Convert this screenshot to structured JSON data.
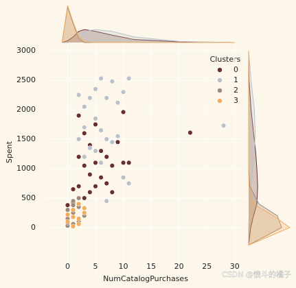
{
  "chart_data": {
    "type": "scatter",
    "x_label": "NumCatalogPurchases",
    "y_label": "Spent",
    "legend_title": "Clusters",
    "legend_position": "upper right",
    "grid": true,
    "watermark": "CSDN @愤斗的橘子",
    "xlim": [
      -4,
      32
    ],
    "ylim": [
      -770,
      3140
    ],
    "xticks": [
      0,
      5,
      10,
      15,
      20,
      25,
      30
    ],
    "yticks": [
      0,
      500,
      1000,
      1500,
      2000,
      2500,
      3000
    ],
    "series": [
      {
        "name": "0",
        "color": "#682f2f",
        "x": [
          0,
          1,
          1,
          2,
          2,
          2,
          3,
          3,
          3,
          4,
          4,
          4,
          5,
          5,
          5,
          6,
          6,
          7,
          7,
          8,
          8,
          9,
          10,
          10,
          11,
          22
        ],
        "values": [
          380,
          650,
          420,
          1900,
          1200,
          700,
          1600,
          1050,
          500,
          1400,
          900,
          600,
          1750,
          1100,
          700,
          1300,
          850,
          1200,
          750,
          1050,
          600,
          1450,
          1960,
          1100,
          1100,
          1610
        ]
      },
      {
        "name": "1",
        "color": "#b9c0c9",
        "x": [
          2,
          2,
          3,
          3,
          3,
          4,
          4,
          5,
          5,
          5,
          6,
          6,
          6,
          7,
          7,
          7,
          8,
          8,
          9,
          9,
          10,
          10,
          11,
          11,
          28
        ],
        "values": [
          2250,
          1500,
          2050,
          1700,
          1200,
          2200,
          1350,
          2350,
          1850,
          1300,
          2530,
          1650,
          1100,
          2200,
          1500,
          450,
          2480,
          1450,
          2120,
          1550,
          2300,
          850,
          2530,
          750,
          1730
        ]
      },
      {
        "name": "2",
        "color": "#9f8a78",
        "x": [
          0,
          0,
          0,
          1,
          1,
          1,
          2,
          2,
          3,
          2,
          1,
          0
        ],
        "values": [
          30,
          150,
          300,
          60,
          250,
          450,
          100,
          350,
          200,
          500,
          380,
          80
        ]
      },
      {
        "name": "3",
        "color": "#f3ab60",
        "x": [
          0,
          0,
          1,
          1,
          2,
          2,
          3,
          3,
          1,
          2
        ],
        "values": [
          100,
          220,
          20,
          300,
          150,
          400,
          250,
          330,
          180,
          60
        ]
      }
    ],
    "top_kde": {
      "x": [
        -1,
        0,
        1,
        2,
        3,
        5,
        8,
        12,
        20,
        30
      ],
      "series": [
        {
          "values": [
            0,
            0.05,
            0.15,
            0.3,
            0.35,
            0.3,
            0.2,
            0.08,
            0.02,
            0
          ]
        },
        {
          "values": [
            0,
            0,
            0.05,
            0.2,
            0.3,
            0.35,
            0.3,
            0.15,
            0.03,
            0
          ]
        },
        {
          "values": [
            0,
            0.95,
            0.5,
            0.1,
            0,
            0,
            0,
            0,
            0,
            0
          ]
        },
        {
          "values": [
            0,
            1.0,
            0.55,
            0.15,
            0.02,
            0,
            0,
            0,
            0,
            0
          ]
        }
      ]
    },
    "right_kde": {
      "y": [
        -300,
        0,
        200,
        400,
        700,
        1000,
        1300,
        1600,
        2000,
        2500,
        3000
      ],
      "series": [
        {
          "values": [
            0,
            0.05,
            0.12,
            0.2,
            0.22,
            0.2,
            0.17,
            0.12,
            0.06,
            0.01,
            0
          ]
        },
        {
          "values": [
            0,
            0,
            0.01,
            0.03,
            0.06,
            0.1,
            0.14,
            0.16,
            0.14,
            0.06,
            0
          ]
        },
        {
          "values": [
            0,
            0.8,
            0.7,
            0.25,
            0.03,
            0,
            0,
            0,
            0,
            0,
            0
          ]
        },
        {
          "values": [
            0,
            1.0,
            0.6,
            0.12,
            0.01,
            0,
            0,
            0,
            0,
            0,
            0
          ]
        }
      ]
    }
  }
}
